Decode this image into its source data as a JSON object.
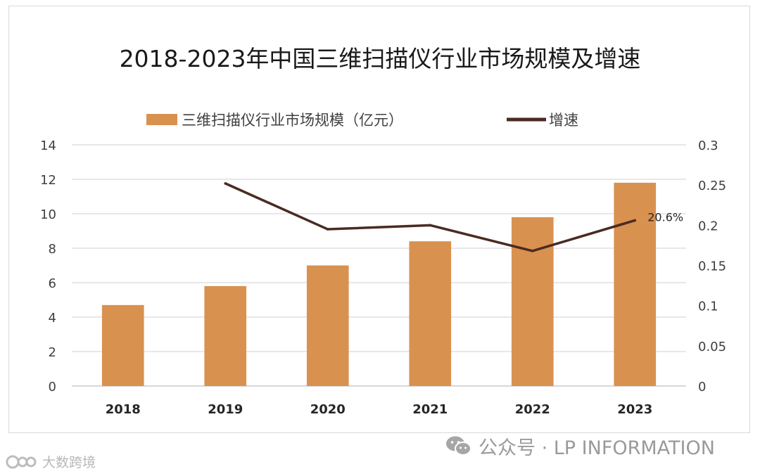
{
  "chart_data": {
    "type": "bar",
    "title": "2018-2023年中国三维扫描仪行业市场规模及增速",
    "categories": [
      "2018",
      "2019",
      "2020",
      "2021",
      "2022",
      "2023"
    ],
    "series": [
      {
        "name": "三维扫描仪行业市场规模（亿元）",
        "type": "bar",
        "axis": "left",
        "values": [
          4.7,
          5.8,
          7.0,
          8.4,
          9.8,
          11.8
        ]
      },
      {
        "name": "增速",
        "type": "line",
        "axis": "right",
        "values": [
          null,
          0.252,
          0.195,
          0.2,
          0.168,
          0.206
        ]
      }
    ],
    "ylim": [
      0,
      14
    ],
    "y_ticks": [
      0,
      2,
      4,
      6,
      8,
      10,
      12,
      14
    ],
    "y2lim": [
      0,
      0.3
    ],
    "y2_ticks": [
      0,
      0.05,
      0.1,
      0.15,
      0.2,
      0.25,
      0.3
    ],
    "y2_tick_labels": [
      "0",
      "0.05",
      "0.1",
      "0.15",
      "0.2",
      "0.25",
      "0.3"
    ],
    "annotations": [
      {
        "category": "2023",
        "series": "增速",
        "text": "20.6%"
      }
    ],
    "legend_position": "top",
    "grid": true,
    "colors": {
      "bar": "#d9914f",
      "line": "#4a2b22",
      "grid": "#d9d9d9",
      "text": "#404040"
    }
  },
  "watermarks": {
    "right": "公众号 · LP INFORMATION",
    "left": "大数跨境"
  }
}
